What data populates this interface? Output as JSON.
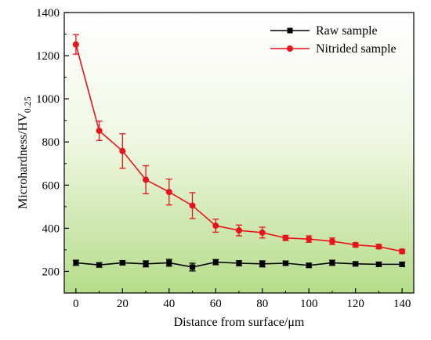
{
  "chart_data": {
    "type": "line",
    "title": "",
    "xlabel": "Distance from surface/μm",
    "ylabel": "Microhardness/HV",
    "ylabel_subscript": "0.25",
    "xlim": [
      -5,
      145
    ],
    "ylim": [
      100,
      1400
    ],
    "x_ticks": [
      0,
      20,
      40,
      60,
      80,
      100,
      120,
      140
    ],
    "y_ticks": [
      200,
      400,
      600,
      800,
      1000,
      1200,
      1400
    ],
    "legend_position": "top-right",
    "background": "vertical gradient from white (top) to light green (bottom)",
    "x": [
      0,
      10,
      20,
      30,
      40,
      50,
      60,
      70,
      80,
      90,
      100,
      110,
      120,
      130,
      140
    ],
    "series": [
      {
        "name": "Raw sample",
        "color": "#000000",
        "marker": "square",
        "values": [
          240,
          230,
          240,
          235,
          240,
          220,
          243,
          238,
          235,
          238,
          228,
          240,
          235,
          233,
          233
        ],
        "errors": [
          12,
          10,
          10,
          14,
          16,
          18,
          12,
          12,
          14,
          10,
          10,
          12,
          10,
          10,
          10
        ]
      },
      {
        "name": "Nitrided sample",
        "color": "#e8141b",
        "marker": "circle",
        "values": [
          1252,
          852,
          758,
          625,
          568,
          505,
          412,
          390,
          380,
          355,
          350,
          340,
          323,
          315,
          293
        ],
        "errors": [
          45,
          45,
          80,
          65,
          60,
          60,
          30,
          25,
          25,
          12,
          15,
          15,
          10,
          10,
          10
        ]
      }
    ]
  }
}
